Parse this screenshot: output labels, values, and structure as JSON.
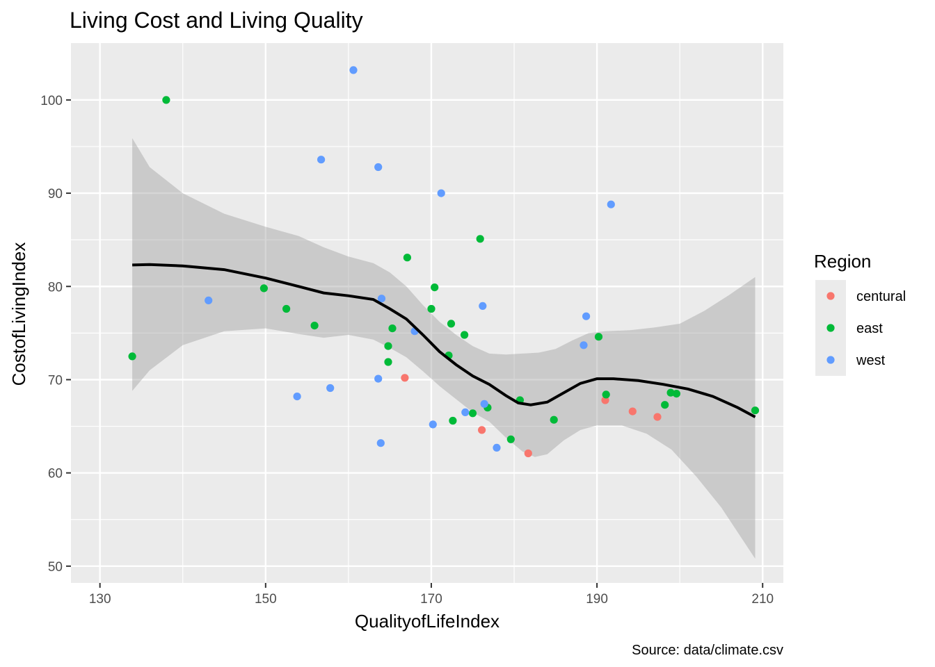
{
  "chart_data": {
    "type": "scatter",
    "title": "Living Cost and Living Quality",
    "xlabel": "QualityofLifeIndex",
    "ylabel": "CostofLivingIndex",
    "caption": "Source: data/climate.csv",
    "xlim": [
      126.5,
      212.5
    ],
    "ylim": [
      48.2,
      106.1
    ],
    "xticks": [
      130,
      150,
      170,
      190,
      210
    ],
    "yticks": [
      50,
      60,
      70,
      80,
      90,
      100
    ],
    "grid": true,
    "legend": {
      "title": "Region",
      "position": "right",
      "entries": [
        {
          "label": "centural",
          "color": "#F8766D"
        },
        {
          "label": "east",
          "color": "#00BA38"
        },
        {
          "label": "west",
          "color": "#619CFF"
        }
      ]
    },
    "series": [
      {
        "name": "centural",
        "color": "#F8766D",
        "points": [
          [
            166.8,
            70.2
          ],
          [
            176.1,
            64.6
          ],
          [
            181.7,
            62.1
          ],
          [
            191.0,
            67.8
          ],
          [
            194.3,
            66.6
          ],
          [
            197.3,
            66.0
          ]
        ]
      },
      {
        "name": "east",
        "color": "#00BA38",
        "points": [
          [
            133.9,
            72.5
          ],
          [
            138.0,
            100.0
          ],
          [
            149.8,
            79.8
          ],
          [
            152.5,
            77.6
          ],
          [
            155.9,
            75.8
          ],
          [
            164.8,
            73.6
          ],
          [
            164.8,
            71.9
          ],
          [
            165.3,
            75.5
          ],
          [
            167.1,
            83.1
          ],
          [
            170.0,
            77.6
          ],
          [
            170.4,
            79.9
          ],
          [
            172.1,
            72.6
          ],
          [
            172.4,
            76.0
          ],
          [
            172.6,
            65.6
          ],
          [
            174.0,
            74.8
          ],
          [
            175.0,
            66.4
          ],
          [
            175.9,
            85.1
          ],
          [
            176.8,
            67.0
          ],
          [
            179.6,
            63.6
          ],
          [
            180.7,
            67.8
          ],
          [
            184.8,
            65.7
          ],
          [
            190.2,
            74.6
          ],
          [
            191.1,
            68.4
          ],
          [
            198.2,
            67.3
          ],
          [
            198.9,
            68.6
          ],
          [
            199.6,
            68.5
          ],
          [
            209.1,
            66.7
          ]
        ]
      },
      {
        "name": "west",
        "color": "#619CFF",
        "points": [
          [
            143.1,
            78.5
          ],
          [
            153.8,
            68.2
          ],
          [
            156.7,
            93.6
          ],
          [
            157.8,
            69.1
          ],
          [
            160.6,
            103.2
          ],
          [
            163.6,
            92.8
          ],
          [
            163.6,
            70.1
          ],
          [
            163.9,
            63.2
          ],
          [
            164.0,
            78.7
          ],
          [
            168.0,
            75.2
          ],
          [
            170.2,
            65.2
          ],
          [
            171.2,
            90.0
          ],
          [
            174.1,
            66.5
          ],
          [
            176.2,
            77.9
          ],
          [
            176.4,
            67.4
          ],
          [
            177.9,
            62.7
          ],
          [
            188.4,
            73.7
          ],
          [
            188.7,
            76.8
          ],
          [
            191.7,
            88.8
          ]
        ]
      }
    ],
    "smooth": {
      "method": "loess",
      "color": "#000000",
      "points": [
        [
          133.9,
          82.3
        ],
        [
          136.0,
          82.35
        ],
        [
          140.0,
          82.2
        ],
        [
          145.0,
          81.8
        ],
        [
          150.0,
          80.9
        ],
        [
          154.0,
          80.0
        ],
        [
          157.0,
          79.3
        ],
        [
          160.0,
          79.0
        ],
        [
          163.0,
          78.6
        ],
        [
          165.0,
          77.6
        ],
        [
          167.0,
          76.5
        ],
        [
          169.0,
          74.8
        ],
        [
          171.0,
          73.0
        ],
        [
          173.0,
          71.6
        ],
        [
          175.0,
          70.4
        ],
        [
          177.0,
          69.5
        ],
        [
          179.0,
          68.3
        ],
        [
          180.5,
          67.5
        ],
        [
          182.0,
          67.3
        ],
        [
          184.0,
          67.6
        ],
        [
          186.0,
          68.6
        ],
        [
          188.0,
          69.6
        ],
        [
          190.0,
          70.1
        ],
        [
          192.0,
          70.1
        ],
        [
          195.0,
          69.9
        ],
        [
          198.0,
          69.5
        ],
        [
          201.0,
          69.0
        ],
        [
          204.0,
          68.2
        ],
        [
          207.0,
          67.0
        ],
        [
          209.1,
          66.0
        ]
      ],
      "band_upper": [
        [
          133.9,
          95.9
        ],
        [
          136.0,
          92.8
        ],
        [
          140.0,
          90.0
        ],
        [
          145.0,
          87.8
        ],
        [
          150.0,
          86.4
        ],
        [
          154.0,
          85.4
        ],
        [
          157.0,
          84.2
        ],
        [
          160.0,
          83.2
        ],
        [
          163.0,
          82.5
        ],
        [
          165.0,
          81.5
        ],
        [
          167.0,
          80.0
        ],
        [
          169.0,
          78.0
        ],
        [
          171.0,
          76.2
        ],
        [
          173.0,
          74.8
        ],
        [
          175.0,
          73.6
        ],
        [
          177.0,
          72.8
        ],
        [
          179.0,
          72.7
        ],
        [
          181.0,
          72.8
        ],
        [
          183.0,
          72.9
        ],
        [
          185.0,
          73.3
        ],
        [
          187.0,
          74.2
        ],
        [
          189.0,
          75.0
        ],
        [
          191.0,
          75.2
        ],
        [
          194.0,
          75.3
        ],
        [
          197.0,
          75.6
        ],
        [
          200.0,
          76.0
        ],
        [
          203.0,
          77.4
        ],
        [
          206.0,
          79.1
        ],
        [
          209.1,
          81.0
        ]
      ],
      "band_lower": [
        [
          133.9,
          68.8
        ],
        [
          136.0,
          71.0
        ],
        [
          140.0,
          73.7
        ],
        [
          145.0,
          75.2
        ],
        [
          150.0,
          75.5
        ],
        [
          154.0,
          74.9
        ],
        [
          157.0,
          74.5
        ],
        [
          160.0,
          74.8
        ],
        [
          163.0,
          74.3
        ],
        [
          165.0,
          73.4
        ],
        [
          167.0,
          72.4
        ],
        [
          169.0,
          70.9
        ],
        [
          171.0,
          69.3
        ],
        [
          173.0,
          67.9
        ],
        [
          175.0,
          66.5
        ],
        [
          177.0,
          65.5
        ],
        [
          179.0,
          63.8
        ],
        [
          181.0,
          62.3
        ],
        [
          182.5,
          61.7
        ],
        [
          184.0,
          62.0
        ],
        [
          186.0,
          63.5
        ],
        [
          188.0,
          64.6
        ],
        [
          190.0,
          65.1
        ],
        [
          193.0,
          65.1
        ],
        [
          196.0,
          64.2
        ],
        [
          199.0,
          62.5
        ],
        [
          202.0,
          59.6
        ],
        [
          205.0,
          56.3
        ],
        [
          209.1,
          50.8
        ]
      ]
    }
  }
}
